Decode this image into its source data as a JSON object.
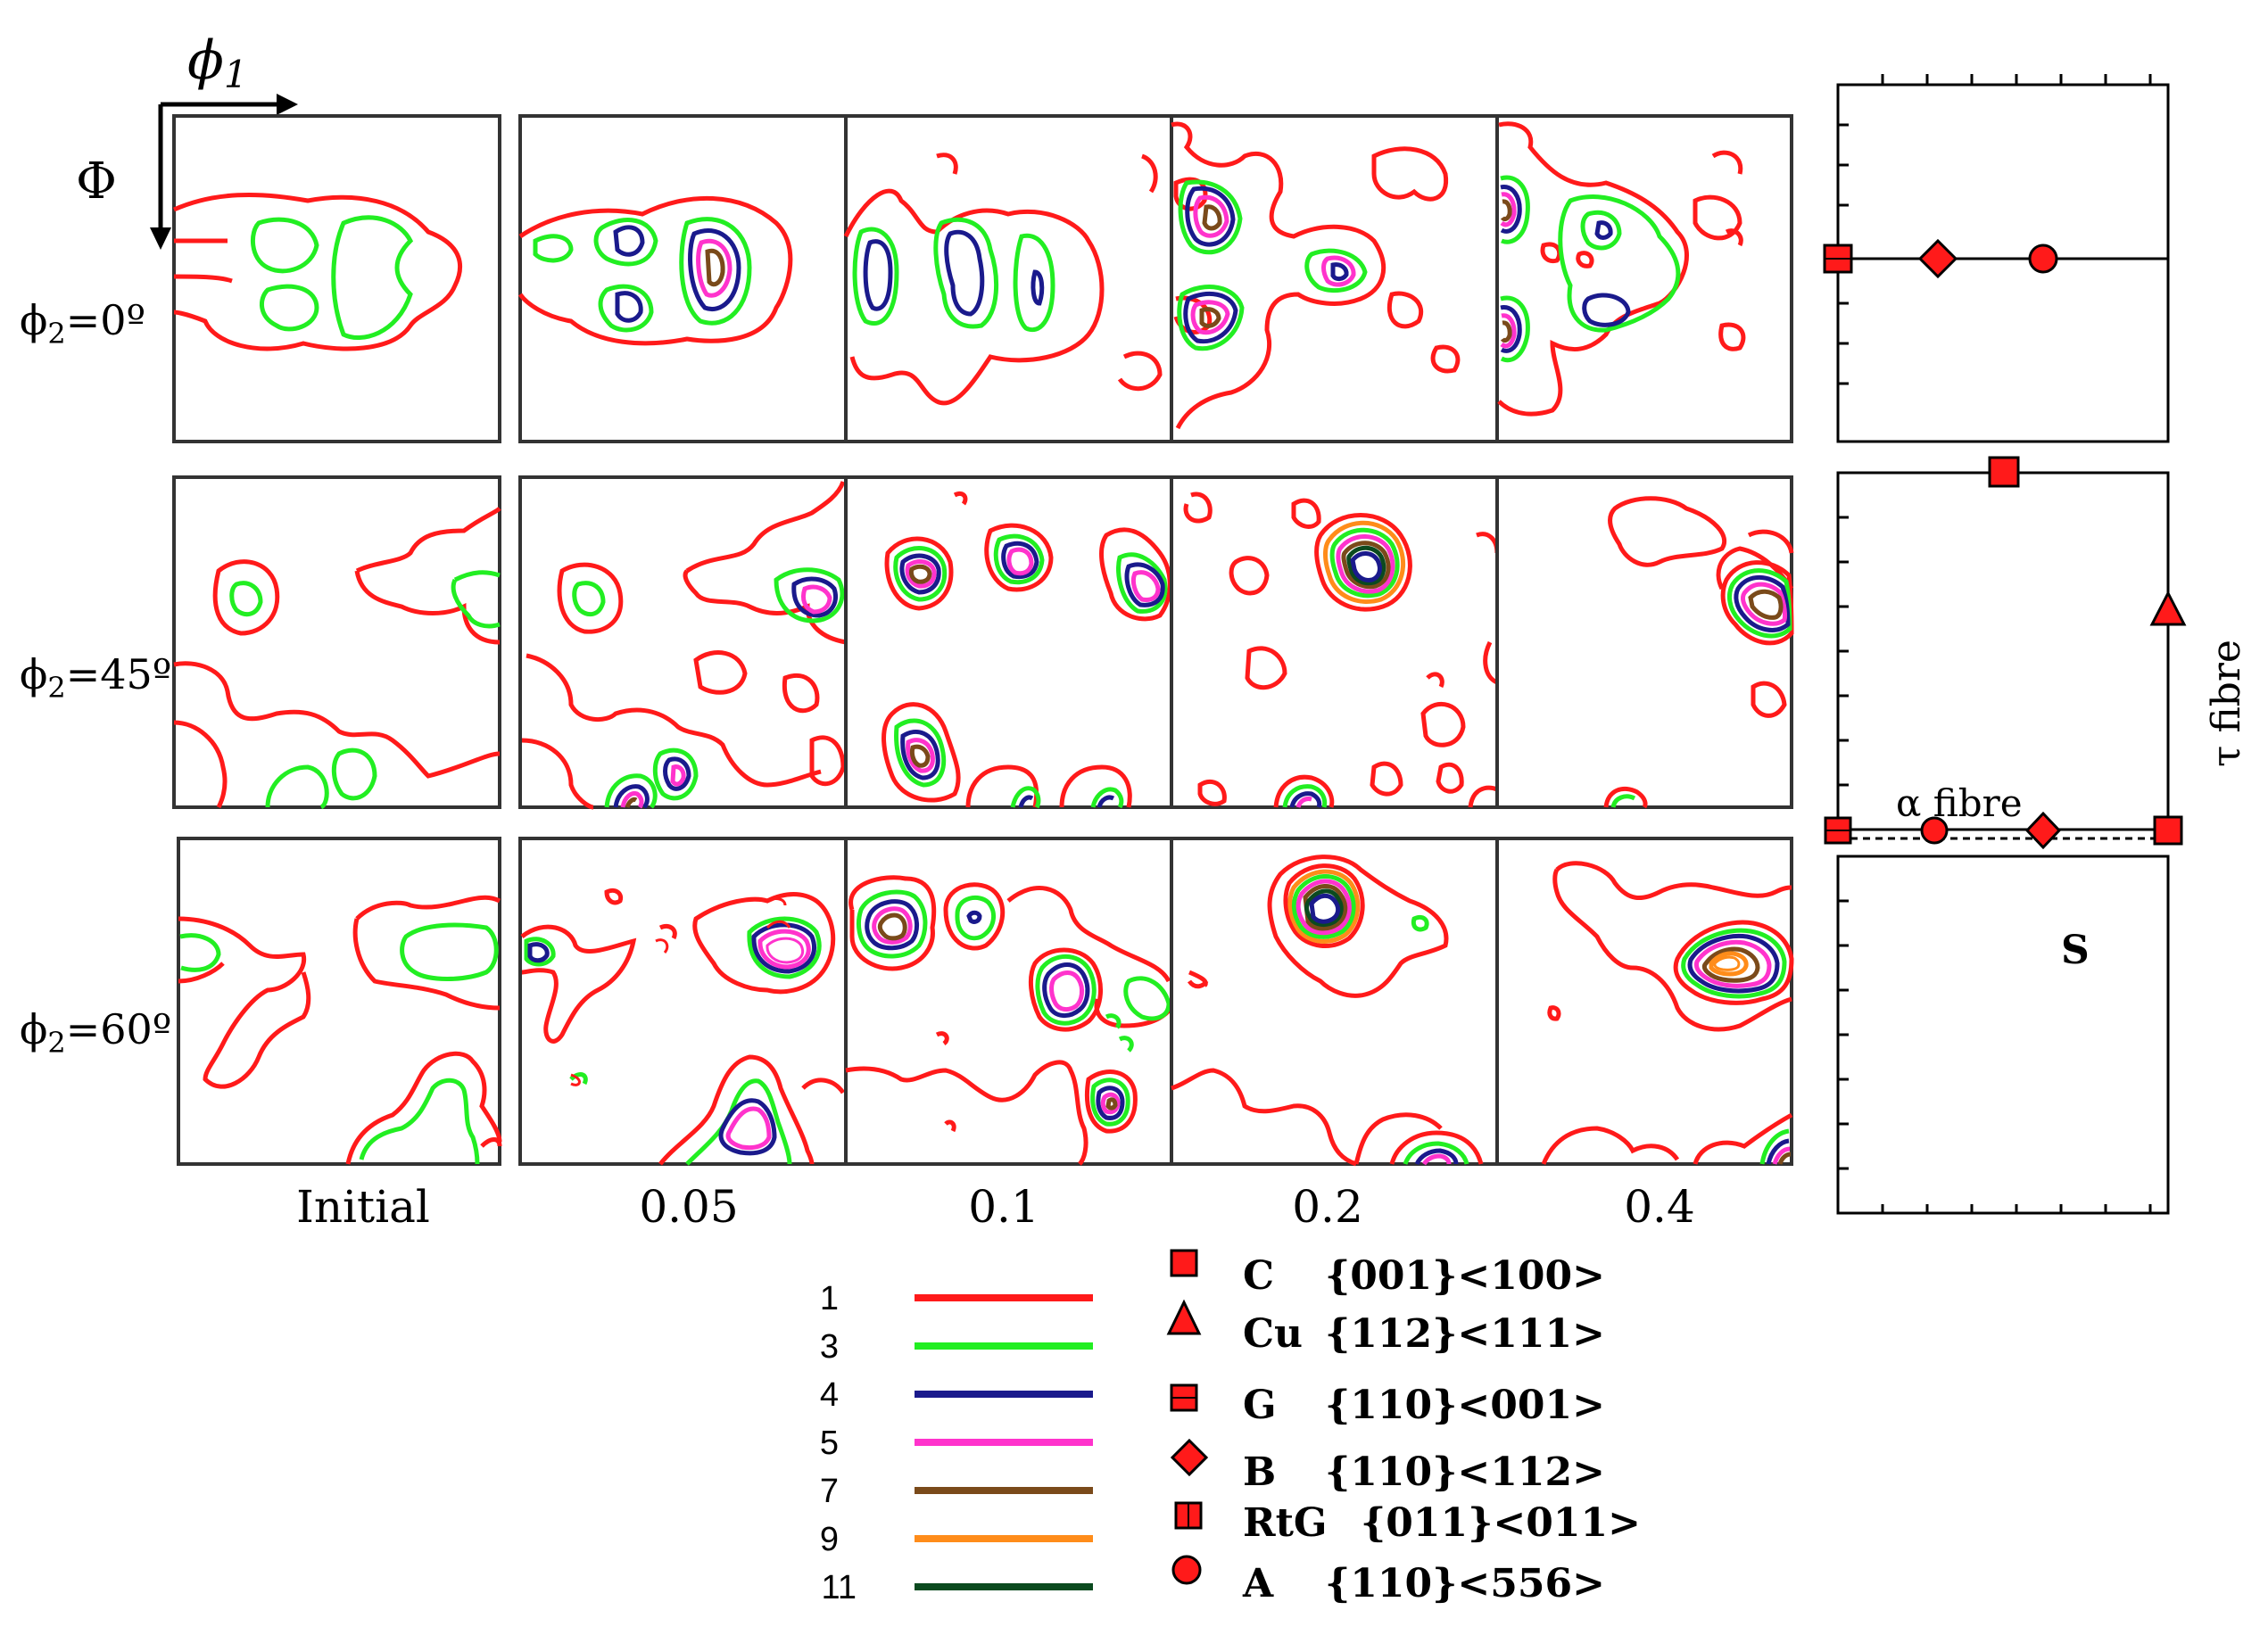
{
  "axes": {
    "horizontal": "ϕ",
    "horizontal_sub": "1",
    "vertical": "Φ"
  },
  "rows": [
    {
      "label": "ϕ",
      "sub": "2",
      "value": "=0º"
    },
    {
      "label": "ϕ",
      "sub": "2",
      "value": "=45º"
    },
    {
      "label": "ϕ",
      "sub": "2",
      "value": "=60º"
    }
  ],
  "columns": [
    "Initial",
    "0.05",
    "0.1",
    "0.2",
    "0.4"
  ],
  "contour_levels": [
    {
      "level": "1",
      "color": "#ff1a1a"
    },
    {
      "level": "3",
      "color": "#22ee22"
    },
    {
      "level": "4",
      "color": "#1a1a8c"
    },
    {
      "level": "5",
      "color": "#ff33cc"
    },
    {
      "level": "7",
      "color": "#7a4a1a"
    },
    {
      "level": "9",
      "color": "#ff8c1a"
    },
    {
      "level": "11",
      "color": "#0b4a1f"
    }
  ],
  "components": [
    {
      "symbol": "square",
      "name": "C",
      "index": "{001}<100>"
    },
    {
      "symbol": "triangle",
      "name": "Cu",
      "index": "{112}<111>"
    },
    {
      "symbol": "square-h",
      "name": "G",
      "index": "{110}<001>"
    },
    {
      "symbol": "diamond",
      "name": "B",
      "index": "{110}<112>"
    },
    {
      "symbol": "square-v",
      "name": "RtG",
      "index": "{011}<011>"
    },
    {
      "symbol": "circle",
      "name": "A",
      "index": "{110}<556>"
    }
  ],
  "schematic": {
    "alpha_fibre": "α fibre",
    "tau_fibre": "τ fibre",
    "s_label": "S"
  },
  "colors": {
    "marker_fill": "#ff1a1a",
    "marker_stroke": "#000000"
  }
}
